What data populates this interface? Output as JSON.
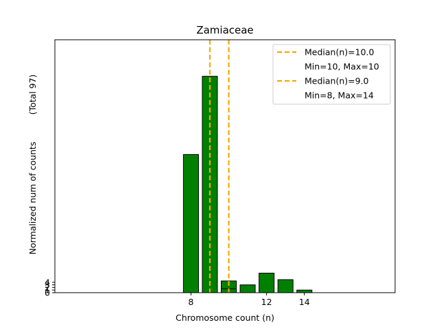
{
  "chart_data": {
    "type": "bar",
    "title": "Zamiaceae",
    "xlabel": "Chromosome count (n)",
    "ylabel": "Normalized num of counts",
    "ylabel_note": "(Total 97)",
    "xlim": [
      0.8,
      18.8
    ],
    "ylim": [
      0,
      97
    ],
    "x_ticks": [
      8,
      12,
      14
    ],
    "y_ticks": [
      0,
      1,
      2,
      3,
      4
    ],
    "bar_color": "#008000",
    "bar_edge_color": "#000000",
    "bar_width": 0.8,
    "series": [
      {
        "x": 8,
        "value": 53
      },
      {
        "x": 9,
        "value": 83
      },
      {
        "x": 10,
        "value": 4.5
      },
      {
        "x": 11,
        "value": 3
      },
      {
        "x": 12,
        "value": 7.5
      },
      {
        "x": 13,
        "value": 5
      },
      {
        "x": 14,
        "value": 1
      }
    ],
    "overlay_bars": [
      {
        "x": 10,
        "value": 1.5
      }
    ],
    "median_lines": [
      {
        "x": 9,
        "color": "#f2a900"
      },
      {
        "x": 10,
        "color": "#f2a900"
      }
    ],
    "legend": {
      "position": "top-right",
      "entries": [
        {
          "label": "Median(n)=10.0",
          "sub": "Min=10, Max=10",
          "color": "#f2a900"
        },
        {
          "label": "Median(n)=9.0",
          "sub": "Min=8, Max=14",
          "color": "#f2a900"
        }
      ]
    }
  }
}
